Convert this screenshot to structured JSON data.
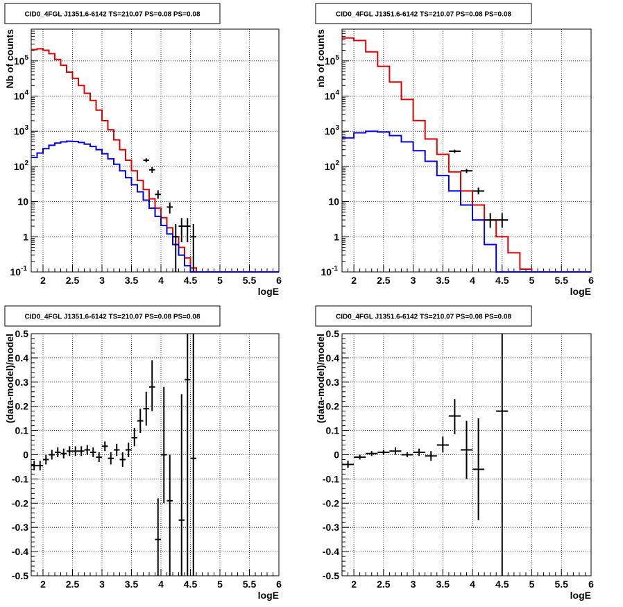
{
  "chart_data": [
    {
      "type": "line",
      "title": "CID0_4FGL J1351.6-6142 TS=210.07 PS=0.08 PS=0.08",
      "xlabel": "logE",
      "ylabel": "Nb of counts",
      "xlim": [
        1.8,
        6.0
      ],
      "ylim": [
        0.1,
        800000
      ],
      "yscale": "log",
      "grid": true,
      "xticks": [
        "2",
        "2.5",
        "3",
        "3.5",
        "4",
        "4.5",
        "5",
        "5.5",
        "6"
      ],
      "yticks": [
        {
          "label": "10",
          "sup": "-1",
          "v": 0.1
        },
        {
          "label": "1",
          "sup": "",
          "v": 1
        },
        {
          "label": "10",
          "sup": "",
          "v": 10
        },
        {
          "label": "10",
          "sup": "2",
          "v": 100
        },
        {
          "label": "10",
          "sup": "3",
          "v": 1000
        },
        {
          "label": "10",
          "sup": "4",
          "v": 10000
        },
        {
          "label": "10",
          "sup": "5",
          "v": 100000
        }
      ],
      "bin_edges": [
        1.8,
        1.9,
        2.0,
        2.1,
        2.2,
        2.3,
        2.4,
        2.5,
        2.6,
        2.7,
        2.8,
        2.9,
        3.0,
        3.1,
        3.2,
        3.3,
        3.4,
        3.5,
        3.6,
        3.7,
        3.8,
        3.9,
        4.0,
        4.1,
        4.2,
        4.3,
        4.4,
        4.5,
        4.6,
        4.7,
        4.8,
        4.9,
        5.0,
        5.1,
        5.2,
        5.3,
        5.4,
        5.5,
        5.6,
        5.7,
        5.8,
        5.9,
        6.0
      ],
      "series": [
        {
          "color": "#e00000",
          "values": [
            210000,
            220000,
            200000,
            160000,
            110000,
            75000,
            48000,
            32000,
            20000,
            12000,
            7500,
            4000,
            2000,
            1100,
            570,
            300,
            150,
            75,
            40,
            22,
            12,
            6.5,
            3.5,
            1.8,
            1.0,
            0.5,
            0.25,
            0.13,
            0.1,
            0.1,
            0.1,
            0.1,
            0.1,
            0.1,
            0.1,
            0.1,
            0.1,
            0.1,
            0.1,
            0.1,
            0.1,
            0.1
          ]
        },
        {
          "color": "#0000e0",
          "values": [
            180,
            240,
            320,
            400,
            460,
            500,
            520,
            510,
            480,
            430,
            370,
            300,
            230,
            165,
            115,
            75,
            48,
            30,
            19,
            11,
            6.5,
            3.8,
            2.1,
            1.2,
            0.6,
            0.3,
            0.15,
            0.1,
            0.1,
            0.1,
            0.1,
            0.1,
            0.1,
            0.1,
            0.1,
            0.1,
            0.1,
            0.1,
            0.1,
            0.1,
            0.1,
            0.1
          ]
        }
      ],
      "points": [
        {
          "x": 3.75,
          "xerr": 0.05,
          "y": 150,
          "ylo": 130,
          "yhi": 170
        },
        {
          "x": 3.85,
          "xerr": 0.05,
          "y": 80,
          "ylo": 66,
          "yhi": 95
        },
        {
          "x": 3.95,
          "xerr": 0.05,
          "y": 16,
          "ylo": 12,
          "yhi": 21
        },
        {
          "x": 4.15,
          "xerr": 0.05,
          "y": 7,
          "ylo": 4.6,
          "yhi": 9.5
        },
        {
          "x": 4.25,
          "xerr": 0.05,
          "y": 1,
          "ylo": 0.1,
          "yhi": 2.3
        },
        {
          "x": 4.35,
          "xerr": 0.05,
          "y": 2,
          "ylo": 0.7,
          "yhi": 3.4
        },
        {
          "x": 4.45,
          "xerr": 0.05,
          "y": 2,
          "ylo": 0.7,
          "yhi": 3.4
        },
        {
          "x": 4.55,
          "xerr": 0.05,
          "y": 1,
          "ylo": 0.1,
          "yhi": 2.3
        }
      ]
    },
    {
      "type": "line",
      "title": "CID0_4FGL J1351.6-6142 TS=210.07 PS=0.08 PS=0.08",
      "xlabel": "logE",
      "ylabel": "nb of counts",
      "xlim": [
        1.8,
        6.0
      ],
      "ylim": [
        0.1,
        800000
      ],
      "yscale": "log",
      "grid": true,
      "xticks": [
        "2",
        "2.5",
        "3",
        "3.5",
        "4",
        "4.5",
        "5",
        "5.5",
        "6"
      ],
      "yticks": [
        {
          "label": "10",
          "sup": "-1",
          "v": 0.1
        },
        {
          "label": "1",
          "sup": "",
          "v": 1
        },
        {
          "label": "10",
          "sup": "",
          "v": 10
        },
        {
          "label": "10",
          "sup": "2",
          "v": 100
        },
        {
          "label": "10",
          "sup": "3",
          "v": 1000
        },
        {
          "label": "10",
          "sup": "4",
          "v": 10000
        },
        {
          "label": "10",
          "sup": "5",
          "v": 100000
        }
      ],
      "bin_edges": [
        1.8,
        2.0,
        2.2,
        2.4,
        2.6,
        2.8,
        3.0,
        3.2,
        3.4,
        3.6,
        3.8,
        4.0,
        4.2,
        4.4,
        4.6,
        4.8,
        5.0,
        5.2,
        5.4,
        5.6,
        5.8,
        6.0
      ],
      "series": [
        {
          "color": "#e00000",
          "values": [
            450000,
            380000,
            180000,
            70000,
            25000,
            8000,
            2000,
            600,
            220,
            70,
            20,
            8,
            3,
            1,
            0.35,
            0.12,
            0.1,
            0.1,
            0.1,
            0.1,
            0.1
          ]
        },
        {
          "color": "#0000e0",
          "values": [
            650,
            900,
            1000,
            950,
            750,
            500,
            280,
            140,
            55,
            20,
            8,
            3,
            0.6,
            0.1,
            0.1,
            0.1,
            0.1,
            0.1,
            0.1,
            0.1,
            0.1
          ]
        }
      ],
      "points": [
        {
          "x": 3.7,
          "xerr": 0.1,
          "y": 270,
          "ylo": 240,
          "yhi": 300
        },
        {
          "x": 3.9,
          "xerr": 0.1,
          "y": 75,
          "ylo": 65,
          "yhi": 85
        },
        {
          "x": 4.1,
          "xerr": 0.1,
          "y": 20,
          "ylo": 16,
          "yhi": 25
        },
        {
          "x": 4.3,
          "xerr": 0.1,
          "y": 3,
          "ylo": 1.8,
          "yhi": 4.7
        },
        {
          "x": 4.5,
          "xerr": 0.1,
          "y": 3,
          "ylo": 1.8,
          "yhi": 4.7
        }
      ]
    },
    {
      "type": "scatter",
      "title": "CID0_4FGL J1351.6-6142 TS=210.07 PS=0.08 PS=0.08",
      "xlabel": "logE",
      "ylabel": "(data-model)/model",
      "xlim": [
        1.8,
        6.0
      ],
      "ylim": [
        -0.5,
        0.5
      ],
      "grid": true,
      "xticks": [
        "2",
        "2.5",
        "3",
        "3.5",
        "4",
        "4.5",
        "5",
        "5.5",
        "6"
      ],
      "yticks": [
        "-0.5",
        "-0.4",
        "-0.3",
        "-0.2",
        "-0.1",
        "0",
        "0.1",
        "0.2",
        "0.3",
        "0.4",
        "0.5"
      ],
      "points": [
        {
          "x": 1.85,
          "xerr": 0.05,
          "y": -0.045,
          "ylo": -0.065,
          "yhi": -0.025
        },
        {
          "x": 1.95,
          "xerr": 0.05,
          "y": -0.045,
          "ylo": -0.065,
          "yhi": -0.025
        },
        {
          "x": 2.05,
          "xerr": 0.05,
          "y": -0.02,
          "ylo": -0.04,
          "yhi": 0.0
        },
        {
          "x": 2.15,
          "xerr": 0.05,
          "y": 0.0,
          "ylo": -0.02,
          "yhi": 0.02
        },
        {
          "x": 2.25,
          "xerr": 0.05,
          "y": 0.01,
          "ylo": -0.01,
          "yhi": 0.03
        },
        {
          "x": 2.35,
          "xerr": 0.05,
          "y": 0.005,
          "ylo": -0.015,
          "yhi": 0.025
        },
        {
          "x": 2.45,
          "xerr": 0.05,
          "y": 0.015,
          "ylo": -0.005,
          "yhi": 0.035
        },
        {
          "x": 2.55,
          "xerr": 0.05,
          "y": 0.015,
          "ylo": -0.005,
          "yhi": 0.035
        },
        {
          "x": 2.65,
          "xerr": 0.05,
          "y": 0.015,
          "ylo": -0.005,
          "yhi": 0.035
        },
        {
          "x": 2.75,
          "xerr": 0.05,
          "y": 0.02,
          "ylo": 0.0,
          "yhi": 0.04
        },
        {
          "x": 2.85,
          "xerr": 0.05,
          "y": 0.01,
          "ylo": -0.01,
          "yhi": 0.03
        },
        {
          "x": 2.95,
          "xerr": 0.05,
          "y": -0.01,
          "ylo": -0.03,
          "yhi": 0.01
        },
        {
          "x": 3.05,
          "xerr": 0.05,
          "y": 0.035,
          "ylo": 0.015,
          "yhi": 0.055
        },
        {
          "x": 3.15,
          "xerr": 0.05,
          "y": -0.015,
          "ylo": -0.04,
          "yhi": 0.01
        },
        {
          "x": 3.25,
          "xerr": 0.05,
          "y": 0.02,
          "ylo": -0.005,
          "yhi": 0.045
        },
        {
          "x": 3.35,
          "xerr": 0.05,
          "y": -0.02,
          "ylo": -0.05,
          "yhi": 0.01
        },
        {
          "x": 3.45,
          "xerr": 0.05,
          "y": 0.02,
          "ylo": -0.01,
          "yhi": 0.05
        },
        {
          "x": 3.55,
          "xerr": 0.05,
          "y": 0.07,
          "ylo": 0.035,
          "yhi": 0.11
        },
        {
          "x": 3.65,
          "xerr": 0.05,
          "y": 0.14,
          "ylo": 0.09,
          "yhi": 0.19
        },
        {
          "x": 3.75,
          "xerr": 0.05,
          "y": 0.19,
          "ylo": 0.12,
          "yhi": 0.26
        },
        {
          "x": 3.85,
          "xerr": 0.05,
          "y": 0.28,
          "ylo": 0.18,
          "yhi": 0.39
        },
        {
          "x": 3.95,
          "xerr": 0.05,
          "y": -0.35,
          "ylo": -0.5,
          "yhi": -0.18
        },
        {
          "x": 4.05,
          "xerr": 0.05,
          "y": 0.0,
          "ylo": -0.2,
          "yhi": 0.28
        },
        {
          "x": 4.15,
          "xerr": 0.05,
          "y": -0.19,
          "ylo": -0.5,
          "yhi": 0.0
        },
        {
          "x": 4.35,
          "xerr": 0.05,
          "y": -0.27,
          "ylo": -0.5,
          "yhi": 0.25
        },
        {
          "x": 4.45,
          "xerr": 0.05,
          "y": 0.31,
          "ylo": -0.5,
          "yhi": 0.5
        },
        {
          "x": 4.55,
          "xerr": 0.05,
          "y": -0.015,
          "ylo": -0.5,
          "yhi": 0.5
        }
      ]
    },
    {
      "type": "scatter",
      "title": "CID0_4FGL J1351.6-6142 TS=210.07 PS=0.08 PS=0.08",
      "xlabel": "logE",
      "ylabel": "(data-model)/model",
      "xlim": [
        1.8,
        6.0
      ],
      "ylim": [
        -0.5,
        0.5
      ],
      "grid": true,
      "xticks": [
        "2",
        "2.5",
        "3",
        "3.5",
        "4",
        "4.5",
        "5",
        "5.5",
        "6"
      ],
      "yticks": [
        "-0.5",
        "-0.4",
        "-0.3",
        "-0.2",
        "-0.1",
        "0",
        "0.1",
        "0.2",
        "0.3",
        "0.4",
        "0.5"
      ],
      "points": [
        {
          "x": 1.9,
          "xerr": 0.1,
          "y": -0.04,
          "ylo": -0.055,
          "yhi": -0.025
        },
        {
          "x": 2.1,
          "xerr": 0.1,
          "y": -0.01,
          "ylo": -0.02,
          "yhi": 0.0
        },
        {
          "x": 2.3,
          "xerr": 0.1,
          "y": 0.005,
          "ylo": -0.005,
          "yhi": 0.015
        },
        {
          "x": 2.5,
          "xerr": 0.1,
          "y": 0.01,
          "ylo": 0.0,
          "yhi": 0.02
        },
        {
          "x": 2.7,
          "xerr": 0.1,
          "y": 0.015,
          "ylo": 0.0,
          "yhi": 0.03
        },
        {
          "x": 2.9,
          "xerr": 0.1,
          "y": 0.0,
          "ylo": -0.01,
          "yhi": 0.01
        },
        {
          "x": 3.1,
          "xerr": 0.1,
          "y": 0.01,
          "ylo": -0.005,
          "yhi": 0.025
        },
        {
          "x": 3.3,
          "xerr": 0.1,
          "y": -0.005,
          "ylo": -0.025,
          "yhi": 0.015
        },
        {
          "x": 3.5,
          "xerr": 0.1,
          "y": 0.04,
          "ylo": 0.01,
          "yhi": 0.075
        },
        {
          "x": 3.7,
          "xerr": 0.1,
          "y": 0.16,
          "ylo": 0.085,
          "yhi": 0.23
        },
        {
          "x": 3.9,
          "xerr": 0.1,
          "y": 0.02,
          "ylo": -0.1,
          "yhi": 0.14
        },
        {
          "x": 4.1,
          "xerr": 0.1,
          "y": -0.06,
          "ylo": -0.27,
          "yhi": 0.15
        },
        {
          "x": 4.5,
          "xerr": 0.1,
          "y": 0.18,
          "ylo": -0.5,
          "yhi": 0.5
        }
      ]
    }
  ]
}
